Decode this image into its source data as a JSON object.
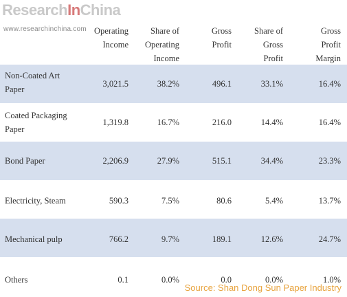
{
  "logo": {
    "part1": "Research",
    "part2": "In",
    "part3": "China"
  },
  "website": "www.researchinchina.com",
  "table": {
    "headers": {
      "operating_income": [
        "Operating",
        "Income"
      ],
      "share_operating_income": [
        "Share of",
        "Operating",
        "Income"
      ],
      "gross_profit": [
        "Gross",
        "Profit"
      ],
      "share_gross_profit": [
        "Share of",
        "Gross",
        "Profit"
      ],
      "gross_profit_margin": [
        "Gross",
        "Profit",
        "Margin"
      ]
    },
    "rows": [
      {
        "label": [
          "Non-Coated Art",
          "Paper"
        ],
        "values": [
          "3,021.5",
          "38.2%",
          "496.1",
          "33.1%",
          "16.4%"
        ]
      },
      {
        "label": [
          "Coated Packaging",
          "Paper"
        ],
        "values": [
          "1,319.8",
          "16.7%",
          "216.0",
          "14.4%",
          "16.4%"
        ]
      },
      {
        "label": [
          "Bond Paper"
        ],
        "values": [
          "2,206.9",
          "27.9%",
          "515.1",
          "34.4%",
          "23.3%"
        ]
      },
      {
        "label": [
          "Electricity, Steam"
        ],
        "values": [
          "590.3",
          "7.5%",
          "80.6",
          "5.4%",
          "13.7%"
        ]
      },
      {
        "label": [
          "Mechanical pulp"
        ],
        "values": [
          "766.2",
          "9.7%",
          "189.1",
          "12.6%",
          "24.7%"
        ]
      },
      {
        "label": [
          "Others"
        ],
        "values": [
          "0.1",
          "0.0%",
          "0.0",
          "0.0%",
          "1.0%"
        ]
      }
    ]
  },
  "source": "Source: Shan Dong Sun Paper Industry",
  "colors": {
    "row_shade": "#d6dfee",
    "source_text": "#e8a33d",
    "logo_gray": "#c9c9c9",
    "logo_accent": "#d77a7a"
  }
}
